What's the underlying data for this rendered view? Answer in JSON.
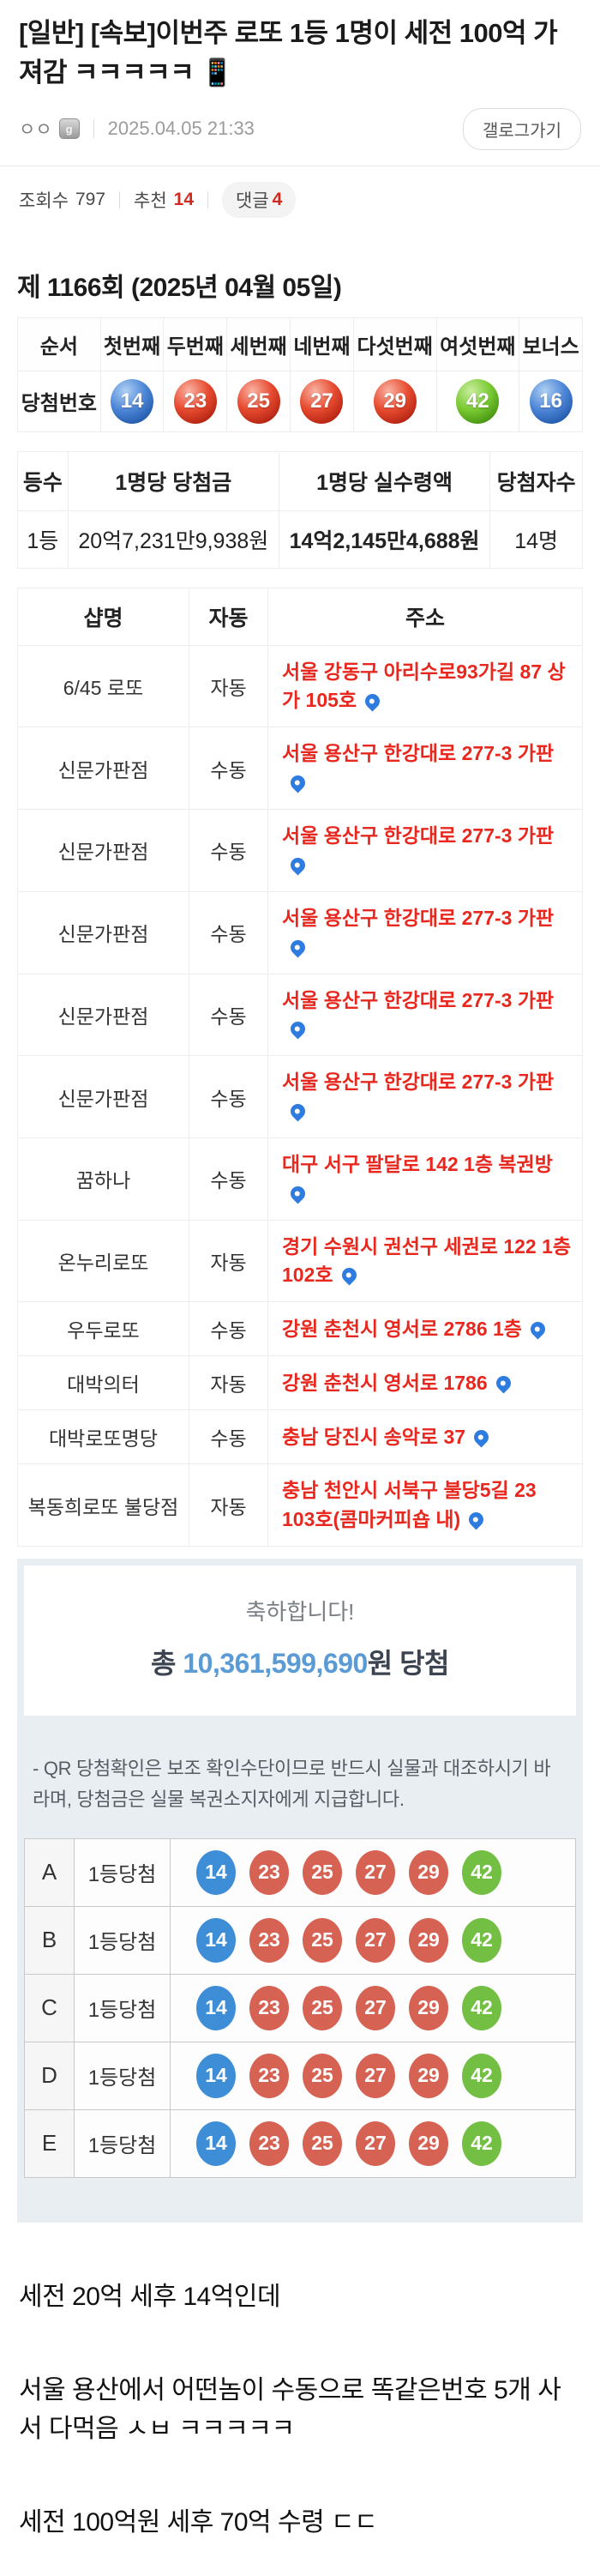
{
  "post": {
    "title": "[일반] [속보]이번주 로또 1등 1명이 세전 100억 가져감 ㅋㅋㅋㅋㅋ 📱",
    "author": "ㅇㅇ",
    "date": "2025.04.05 21:33",
    "gallog_button": "갤로그가기",
    "stats": {
      "views_label": "조회수",
      "views": "797",
      "likes_label": "추천",
      "likes": "14",
      "comments_label": "댓글",
      "comments": "4"
    }
  },
  "lotto": {
    "round_title": "제 1166회 (2025년 04월 05일)",
    "order_headers": [
      "순서",
      "첫번째",
      "두번째",
      "세번째",
      "네번째",
      "다섯번째",
      "여섯번째",
      "보너스"
    ],
    "numbers_row_label": "당첨번호",
    "numbers": [
      {
        "n": "14",
        "color": "blue"
      },
      {
        "n": "23",
        "color": "red"
      },
      {
        "n": "25",
        "color": "red"
      },
      {
        "n": "27",
        "color": "red"
      },
      {
        "n": "29",
        "color": "red"
      },
      {
        "n": "42",
        "color": "green"
      },
      {
        "n": "16",
        "color": "blue"
      }
    ],
    "prize_headers": [
      "등수",
      "1명당 당첨금",
      "1명당 실수령액",
      "당첨자수"
    ],
    "prize_row": {
      "rank": "1등",
      "prize": "20억7,231만9,938원",
      "net": "14억2,145만4,688원",
      "winners": "14명"
    },
    "shop_headers": [
      "샵명",
      "자동",
      "주소"
    ],
    "shops": [
      {
        "name": "6/45 로또",
        "method": "자동",
        "address": "서울 강동구 아리수로93가길 87 상가 105호"
      },
      {
        "name": "신문가판점",
        "method": "수동",
        "address": "서울 용산구 한강대로 277-3 가판"
      },
      {
        "name": "신문가판점",
        "method": "수동",
        "address": "서울 용산구 한강대로 277-3 가판"
      },
      {
        "name": "신문가판점",
        "method": "수동",
        "address": "서울 용산구 한강대로 277-3 가판"
      },
      {
        "name": "신문가판점",
        "method": "수동",
        "address": "서울 용산구 한강대로 277-3 가판"
      },
      {
        "name": "신문가판점",
        "method": "수동",
        "address": "서울 용산구 한강대로 277-3 가판"
      },
      {
        "name": "꿈하나",
        "method": "수동",
        "address": "대구 서구 팔달로 142 1층 복권방"
      },
      {
        "name": "온누리로또",
        "method": "자동",
        "address": "경기 수원시 권선구 세권로 122 1층 102호"
      },
      {
        "name": "우두로또",
        "method": "수동",
        "address": "강원 춘천시 영서로 2786 1층"
      },
      {
        "name": "대박의터",
        "method": "자동",
        "address": "강원 춘천시 영서로 1786"
      },
      {
        "name": "대박로또명당",
        "method": "수동",
        "address": "충남 당진시 송악로 37"
      },
      {
        "name": "복동희로또 불당점",
        "method": "자동",
        "address": "충남 천안시 서북구 불당5길 23 103호(콤마커피숍 내)"
      }
    ],
    "congrats": {
      "greeting": "축하합니다!",
      "total_prefix": "총 ",
      "amount": "10,361,599,690",
      "total_suffix": "원 당첨"
    },
    "qr_notice": "- QR 당첨확인은 보조 확인수단이므로 반드시 실물과 대조하시기 바라며, 당첨금은 실물 복권소지자에게 지급합니다.",
    "tickets": [
      {
        "label": "A",
        "result": "1등당첨",
        "numbers": [
          "14",
          "23",
          "25",
          "27",
          "29",
          "42"
        ]
      },
      {
        "label": "B",
        "result": "1등당첨",
        "numbers": [
          "14",
          "23",
          "25",
          "27",
          "29",
          "42"
        ]
      },
      {
        "label": "C",
        "result": "1등당첨",
        "numbers": [
          "14",
          "23",
          "25",
          "27",
          "29",
          "42"
        ]
      },
      {
        "label": "D",
        "result": "1등당첨",
        "numbers": [
          "14",
          "23",
          "25",
          "27",
          "29",
          "42"
        ]
      },
      {
        "label": "E",
        "result": "1등당첨",
        "numbers": [
          "14",
          "23",
          "25",
          "27",
          "29",
          "42"
        ]
      }
    ]
  },
  "body_paragraphs": [
    "세전 20억 세후 14억인데",
    "서울 용산에서 어떤놈이 수동으로 똑같은번호 5개 사서 다먹음 ㅅㅂ ㅋㅋㅋㅋㅋ",
    "세전 100억원 세후 70억 수령 ㄷㄷ"
  ],
  "colors": {
    "accent_red": "#e8281e",
    "amount_blue": "#5b9bd5",
    "pin_blue": "#2e7ce0",
    "ball_blue_flat": "#3e8ed7",
    "ball_red_flat": "#d66253",
    "ball_green_flat": "#72bf44",
    "qr_section_bg": "#e9eef3"
  }
}
